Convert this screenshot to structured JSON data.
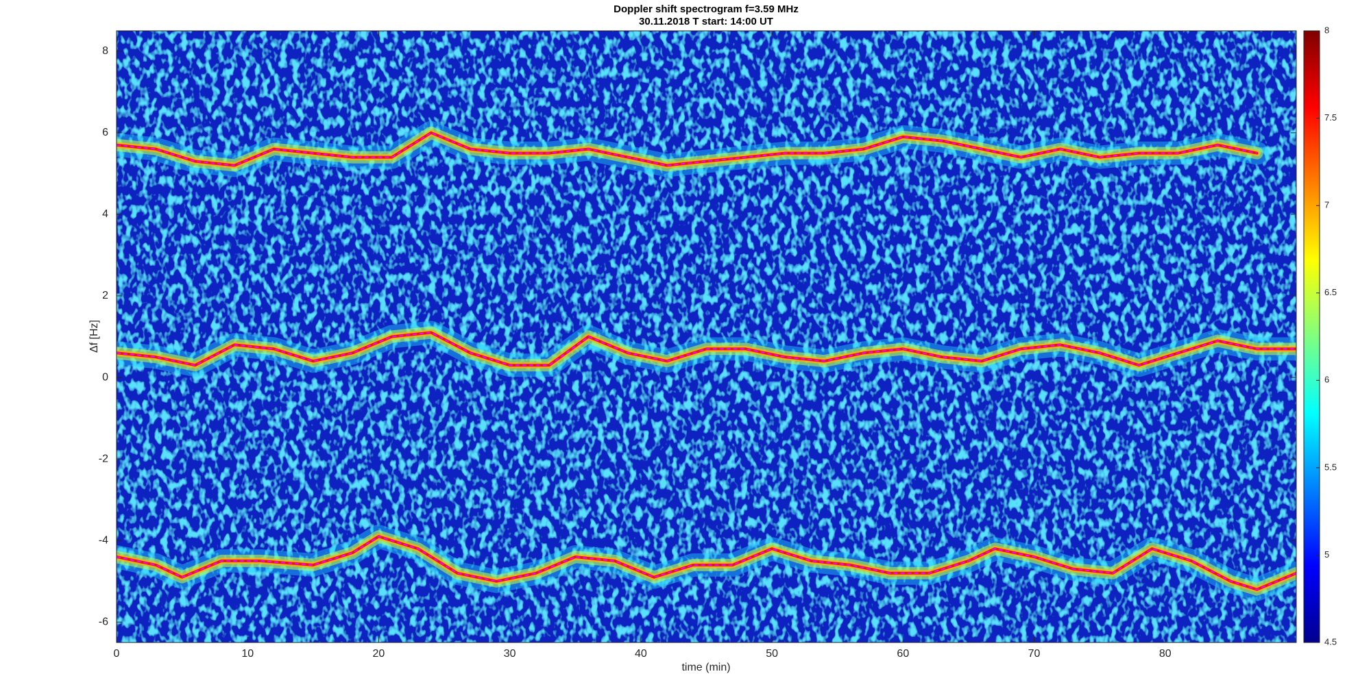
{
  "chart_data": {
    "type": "spectrogram",
    "title": "Doppler shift spectrogram f=3.59 MHz",
    "subtitle": "30.11.2018   T start: 14:00 UT",
    "xlabel": "time (min)",
    "ylabel": "Δf [Hz]",
    "xlim": [
      0,
      90
    ],
    "xticks": [
      0,
      10,
      20,
      30,
      40,
      50,
      60,
      70,
      80
    ],
    "ylim": [
      -6.5,
      8.5
    ],
    "yticks": [
      -6,
      -4,
      -2,
      0,
      2,
      4,
      6,
      8
    ],
    "colormap": "jet",
    "clim": [
      4.5,
      8
    ],
    "cticks": [
      4.5,
      5,
      5.5,
      6,
      6.5,
      7,
      7.5,
      8
    ],
    "series": [
      {
        "color": "#ff00ff",
        "x": [
          0,
          3,
          6,
          9,
          12,
          15,
          18,
          21,
          24,
          27,
          30,
          33,
          36,
          39,
          42,
          45,
          48,
          51,
          54,
          57,
          60,
          63,
          66,
          69,
          72,
          75,
          78,
          81,
          84,
          87
        ],
        "values": [
          5.7,
          5.6,
          5.3,
          5.2,
          5.6,
          5.5,
          5.4,
          5.4,
          6.0,
          5.6,
          5.5,
          5.5,
          5.6,
          5.4,
          5.2,
          5.3,
          5.4,
          5.5,
          5.5,
          5.6,
          5.9,
          5.8,
          5.6,
          5.4,
          5.6,
          5.4,
          5.5,
          5.5,
          5.7,
          5.5
        ]
      },
      {
        "color": "#ff00ff",
        "x": [
          0,
          3,
          6,
          9,
          12,
          15,
          18,
          21,
          24,
          27,
          30,
          33,
          36,
          39,
          42,
          45,
          48,
          51,
          54,
          57,
          60,
          63,
          66,
          69,
          72,
          75,
          78,
          81,
          84,
          87,
          90
        ],
        "values": [
          0.6,
          0.5,
          0.3,
          0.8,
          0.7,
          0.4,
          0.6,
          1.0,
          1.1,
          0.6,
          0.3,
          0.3,
          1.0,
          0.6,
          0.4,
          0.7,
          0.7,
          0.5,
          0.4,
          0.6,
          0.7,
          0.5,
          0.4,
          0.7,
          0.8,
          0.6,
          0.3,
          0.6,
          0.9,
          0.7,
          0.7
        ]
      },
      {
        "color": "#ff00ff",
        "x": [
          0,
          3,
          5,
          8,
          11,
          15,
          18,
          20,
          23,
          26,
          29,
          32,
          35,
          38,
          41,
          44,
          47,
          50,
          53,
          56,
          59,
          62,
          65,
          67,
          70,
          73,
          76,
          79,
          82,
          85,
          87,
          90
        ],
        "values": [
          -4.4,
          -4.6,
          -4.9,
          -4.5,
          -4.5,
          -4.6,
          -4.3,
          -3.9,
          -4.2,
          -4.8,
          -5.0,
          -4.8,
          -4.4,
          -4.5,
          -4.9,
          -4.6,
          -4.6,
          -4.2,
          -4.5,
          -4.6,
          -4.8,
          -4.8,
          -4.5,
          -4.2,
          -4.4,
          -4.7,
          -4.8,
          -4.2,
          -4.5,
          -5.0,
          -5.2,
          -4.8
        ]
      }
    ]
  }
}
